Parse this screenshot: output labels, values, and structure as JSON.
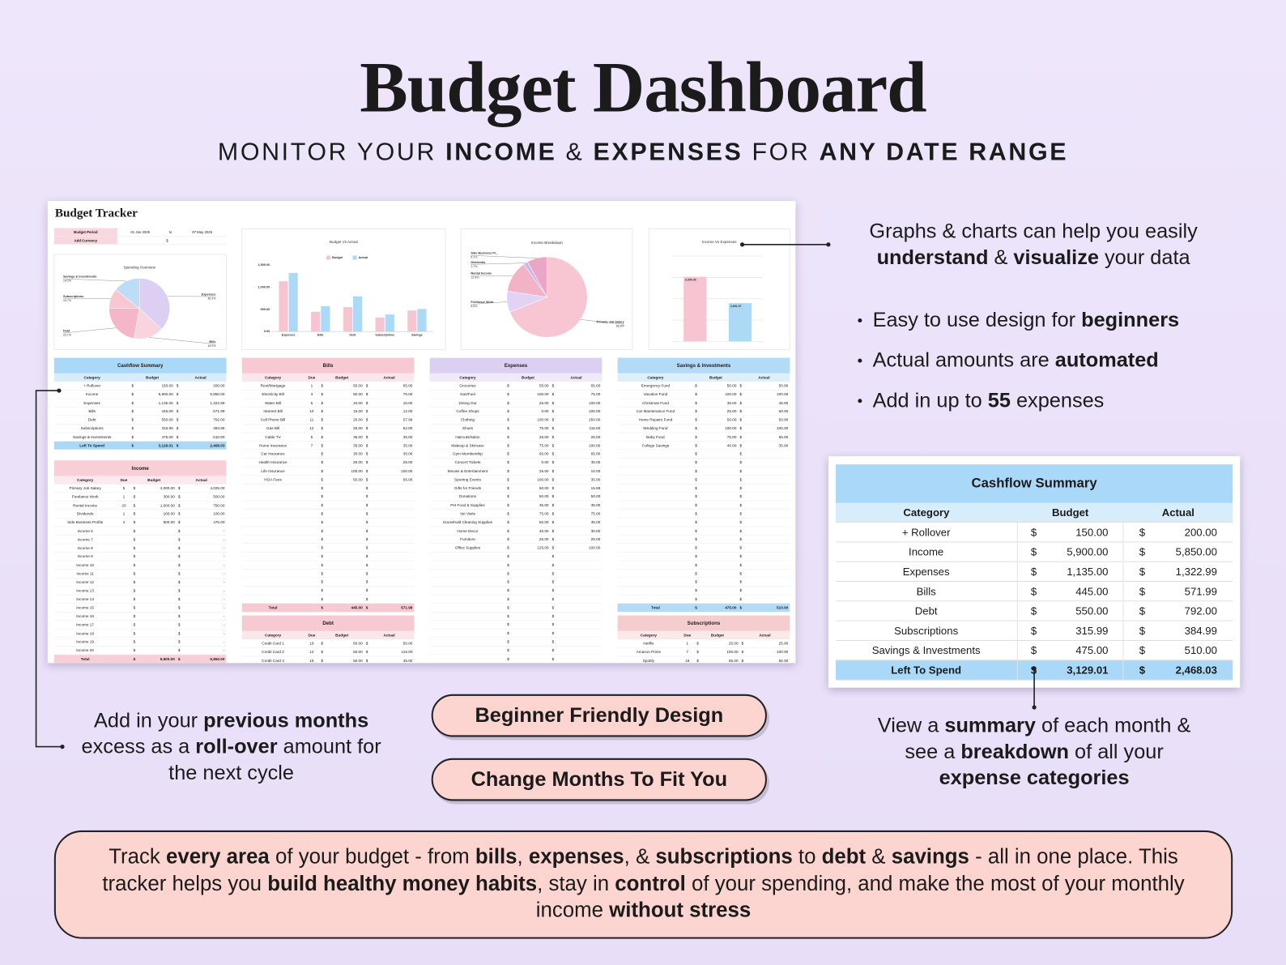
{
  "header": {
    "title": "Budget Dashboard",
    "subtitle": [
      {
        "text": "MONITOR YOUR "
      },
      {
        "text": "INCOME",
        "bold": true
      },
      {
        "text": " & "
      },
      {
        "text": "EXPENSES",
        "bold": true
      },
      {
        "text": " FOR "
      },
      {
        "text": "ANY DATE RANGE",
        "bold": true
      }
    ]
  },
  "tracker": {
    "title": "Budget Tracker",
    "period_label": "Budget Period",
    "start": "01 Jan 2025",
    "to": "to",
    "end": "07 May 2025",
    "currency_label": "Add Currency",
    "currency": "$",
    "charts": {
      "spending_overview": {
        "type": "pie",
        "title": "Spending Overview",
        "labels": [
          "Expenses",
          "Bills",
          "Debt",
          "Subscriptions",
          "Savings & Investments"
        ],
        "values": [
          36.9,
          16.0,
          22.1,
          10.7,
          14.2
        ],
        "value_labels": [
          "36.9%",
          "16.0%",
          "22.1%",
          "10.7%",
          "14.2%"
        ],
        "colors": [
          "#dccff3",
          "#f9d3dd",
          "#f4b6c8",
          "#f8c7d2",
          "#bddcf7"
        ]
      },
      "budget_vs_actual": {
        "type": "bar",
        "title": "Budget Vs Actual",
        "categories": [
          "Expenses",
          "Bills",
          "Debt",
          "Subscriptions",
          "Savings"
        ],
        "series": [
          {
            "name": "Budget",
            "color": "#f7c5d1",
            "values": [
              1135,
              445,
              550,
              315.99,
              475
            ]
          },
          {
            "name": "Actual",
            "color": "#abd9f6",
            "values": [
              1322.99,
              571.99,
              792,
              384.99,
              510
            ]
          }
        ],
        "ylim": [
          0,
          1500
        ],
        "yticks": [
          {
            "value": 0,
            "label": "0.00"
          },
          {
            "value": 500,
            "label": "500.00"
          },
          {
            "value": 1000,
            "label": "1,000.00"
          },
          {
            "value": 1500,
            "label": "1,500.00"
          }
        ],
        "grid": false
      },
      "income_breakdown": {
        "type": "pie",
        "title": "Income Breakdown",
        "labels": [
          "Primary Job Salary",
          "Freelance Work",
          "Rental Income",
          "Dividends",
          "Side Business Pr..."
        ],
        "values": [
          68.8,
          8.5,
          12.8,
          1.7,
          8.1
        ],
        "value_labels": [
          "68.8%",
          "8.5%",
          "12.8%",
          "1.7%",
          "8.1%"
        ],
        "colors": [
          "#f7c6d2",
          "#e2d3f4",
          "#f3b3c7",
          "#c9b8ec",
          "#eaa6c4"
        ]
      },
      "income_vs_expenses": {
        "type": "bar",
        "title": "Income Vs Expenses",
        "values": [
          6050,
          3581.97
        ],
        "value_labels": [
          "6,050.00",
          "3,581.97"
        ],
        "colors": [
          "#f7c5d1",
          "#abd9f6"
        ],
        "ylim": [
          0,
          8000
        ],
        "yticks": [
          0,
          2000,
          4000,
          6000,
          8000
        ],
        "grid": true
      }
    },
    "tables": {
      "cashflow": {
        "title": "Cashflow Summary",
        "color": "#a9d8f8",
        "columns": [
          "Category",
          "Budget",
          "Actual"
        ],
        "rows": [
          [
            "+ Rollover",
            "150.00",
            "200.00"
          ],
          [
            "Income",
            "5,900.00",
            "5,850.00"
          ],
          [
            "Expenses",
            "1,135.00",
            "1,322.99"
          ],
          [
            "Bills",
            "445.00",
            "571.99"
          ],
          [
            "Debt",
            "550.00",
            "792.00"
          ],
          [
            "Subscriptions",
            "315.99",
            "384.99"
          ],
          [
            "Savings & Investments",
            "475.00",
            "510.00"
          ]
        ],
        "total": [
          "Left To Spend",
          "3,129.01",
          "2,468.03"
        ]
      },
      "income": {
        "title": "Income",
        "color": "#f8cfd6",
        "columns": [
          "Category",
          "Due",
          "Budget",
          "Actual"
        ],
        "rows": [
          [
            "Primary Job Salary",
            "5",
            "4,000.00",
            "4,025.00"
          ],
          [
            "Freelance Work",
            "1",
            "300.00",
            "500.00"
          ],
          [
            "Rental Income",
            "20",
            "1,000.00",
            "750.00"
          ],
          [
            "Dividends",
            "1",
            "100.00",
            "100.00"
          ],
          [
            "Side Business Profits",
            "4",
            "500.00",
            "475.00"
          ],
          [
            "Income 6",
            null,
            null,
            "-"
          ],
          [
            "Income 7",
            null,
            null,
            "-"
          ],
          [
            "Income 8",
            null,
            null,
            "-"
          ],
          [
            "Income 9",
            null,
            null,
            "-"
          ],
          [
            "Income 10",
            null,
            null,
            "-"
          ],
          [
            "Income 11",
            null,
            null,
            "-"
          ],
          [
            "Income 12",
            null,
            null,
            "-"
          ],
          [
            "Income 13",
            null,
            null,
            "-"
          ],
          [
            "Income 14",
            null,
            null,
            "-"
          ],
          [
            "Income 15",
            null,
            null,
            "-"
          ],
          [
            "Income 16",
            null,
            null,
            "-"
          ],
          [
            "Income 17",
            null,
            null,
            "-"
          ],
          [
            "Income 18",
            null,
            null,
            "-"
          ],
          [
            "Income 19",
            null,
            null,
            "-"
          ],
          [
            "Income 20",
            null,
            null,
            "-"
          ]
        ],
        "total": [
          "Total",
          null,
          "5,900.00",
          "5,850.00"
        ]
      },
      "bills": {
        "title": "Bills",
        "color": "#f7c9d3",
        "columns": [
          "Category",
          "Due",
          "Budget",
          "Actual"
        ],
        "rows": [
          [
            "Rent/Mortgage",
            "1",
            "50.00",
            "65.00"
          ],
          [
            "Electricity Bill",
            "3",
            "50.00",
            "75.00"
          ],
          [
            "Water Bill",
            "6",
            "10.00",
            "10.00"
          ],
          [
            "Internet Bill",
            "10",
            "15.00",
            "12.00"
          ],
          [
            "Cell Phone Bill",
            "11",
            "20.00",
            "57.99"
          ],
          [
            "Gas Bill",
            "12",
            "25.00",
            "62.00"
          ],
          [
            "Cable TV",
            "5",
            "35.00",
            "35.00"
          ],
          [
            "Home Insurance",
            "7",
            "35.00",
            "35.00"
          ],
          [
            "Car Insurance",
            null,
            "30.00",
            "30.00"
          ],
          [
            "Health Insurance",
            null,
            "25.00",
            "25.00"
          ],
          [
            "Life Insurance",
            null,
            "100.00",
            "100.00"
          ],
          [
            "HOA Fees",
            null,
            "50.00",
            "65.00"
          ]
        ],
        "total": [
          "Total",
          null,
          "445.00",
          "571.99"
        ]
      },
      "expenses": {
        "title": "Expenses",
        "color": "#dcd0f2",
        "columns": [
          "Category",
          "Budget",
          "Actual"
        ],
        "rows": [
          [
            "Groceries",
            "55.00",
            "65.00"
          ],
          [
            "Gas/Fuel",
            "100.00",
            "75.00"
          ],
          [
            "Dining Out",
            "25.00",
            "100.00"
          ],
          [
            "Coffee Shops",
            "0.00",
            "105.00"
          ],
          [
            "Clothing",
            "100.00",
            "250.00"
          ],
          [
            "Shoes",
            "75.00",
            "115.00"
          ],
          [
            "Haircuts/Salon",
            "25.00",
            "25.00"
          ],
          [
            "Makeup & Skincare",
            "75.00",
            "100.00"
          ],
          [
            "Gym Membership",
            "65.00",
            "65.00"
          ],
          [
            "Concert Tickets",
            "0.00",
            "35.00"
          ],
          [
            "Movies & Entertainment",
            "25.00",
            "10.00"
          ],
          [
            "Sporting Events",
            "100.00",
            "35.00"
          ],
          [
            "Gifts for Friends",
            "50.00",
            "15.99"
          ],
          [
            "Donations",
            "50.00",
            "50.00"
          ],
          [
            "Pet Food & Supplies",
            "35.00",
            "35.00"
          ],
          [
            "Vet Visits",
            "75.00",
            "75.00"
          ],
          [
            "Household Cleaning Supplies",
            "50.00",
            "35.00"
          ],
          [
            "Home Decor",
            "40.00",
            "30.00"
          ],
          [
            "Furniture",
            "25.00",
            "25.00"
          ],
          [
            "Office Supplies",
            "125.00",
            "100.00"
          ]
        ]
      },
      "savings": {
        "title": "Savings & Investments",
        "color": "#b3dbf7",
        "columns": [
          "Category",
          "Budget",
          "Actual"
        ],
        "rows": [
          [
            "Emergency Fund",
            "50.00",
            "50.00"
          ],
          [
            "Vacation Fund",
            "100.00",
            "100.00"
          ],
          [
            "Christmas Fund",
            "35.00",
            "45.00"
          ],
          [
            "Car Maintenance Fund",
            "25.00",
            "60.00"
          ],
          [
            "Home Repairs Fund",
            "50.00",
            "50.00"
          ],
          [
            "Wedding Fund",
            "100.00",
            "105.00"
          ],
          [
            "Baby Fund",
            "75.00",
            "65.00"
          ],
          [
            "College Savings",
            "40.00",
            "35.00"
          ]
        ],
        "total": [
          "Total",
          "475.00",
          "510.00"
        ]
      },
      "debt": {
        "title": "Debt",
        "color": "#f7c9d3",
        "columns": [
          "Category",
          "Due",
          "Budget",
          "Actual"
        ],
        "rows": [
          [
            "Credit Card 1",
            "19",
            "50.00",
            "50.00"
          ],
          [
            "Credit Card 2",
            "14",
            "50.00",
            "115.00"
          ],
          [
            "Credit Card 3",
            "15",
            "50.00",
            "45.00"
          ]
        ]
      },
      "subscriptions": {
        "title": "Subscriptions",
        "color": "#f6cdcf",
        "columns": [
          "Category",
          "Due",
          "Budget",
          "Actual"
        ],
        "rows": [
          [
            "Netflix",
            "1",
            "25.00",
            "25.00"
          ],
          [
            "Amazon Prime",
            "7",
            "100.00",
            "100.00"
          ],
          [
            "Spotify",
            "18",
            "65.00",
            "65.00"
          ]
        ]
      }
    }
  },
  "callouts": {
    "charts_note": [
      {
        "text": "Graphs & charts can help you easily "
      },
      {
        "text": "understand",
        "bold": true
      },
      {
        "text": " & "
      },
      {
        "text": "visualize",
        "bold": true
      },
      {
        "text": " your data"
      }
    ],
    "bullets": [
      [
        {
          "text": "Easy to use design for "
        },
        {
          "text": "beginners",
          "bold": true
        }
      ],
      [
        {
          "text": "Actual amounts are "
        },
        {
          "text": "automated",
          "bold": true
        }
      ],
      [
        {
          "text": "Add in up to "
        },
        {
          "text": "55",
          "bold": true
        },
        {
          "text": " expenses"
        }
      ]
    ],
    "rollover_note": [
      {
        "text": "Add in your "
      },
      {
        "text": "previous months",
        "bold": true
      },
      {
        "text": " excess as a "
      },
      {
        "text": "roll-over",
        "bold": true
      },
      {
        "text": " amount for the next cycle"
      }
    ],
    "buttons": [
      "Beginner Friendly Design",
      "Change Months To Fit You"
    ],
    "summary_note": [
      {
        "text": "View a "
      },
      {
        "text": "summary",
        "bold": true
      },
      {
        "text": " of each month & see a "
      },
      {
        "text": "breakdown",
        "bold": true
      },
      {
        "text": " of all your "
      },
      {
        "text": "expense categories",
        "bold": true
      }
    ],
    "footer": [
      {
        "text": "Track "
      },
      {
        "text": "every area",
        "bold": true
      },
      {
        "text": " of your budget - from "
      },
      {
        "text": "bills",
        "bold": true
      },
      {
        "text": ", "
      },
      {
        "text": "expenses",
        "bold": true
      },
      {
        "text": ", & "
      },
      {
        "text": "subscriptions",
        "bold": true
      },
      {
        "text": " to "
      },
      {
        "text": "debt",
        "bold": true
      },
      {
        "text": " & "
      },
      {
        "text": "savings",
        "bold": true
      },
      {
        "text": " - all in one place. This tracker helps you "
      },
      {
        "text": "build healthy money habits",
        "bold": true
      },
      {
        "text": ", stay in "
      },
      {
        "text": "control",
        "bold": true
      },
      {
        "text": " of your spending, and make the most of your monthly income "
      },
      {
        "text": "without stress",
        "bold": true
      }
    ]
  }
}
